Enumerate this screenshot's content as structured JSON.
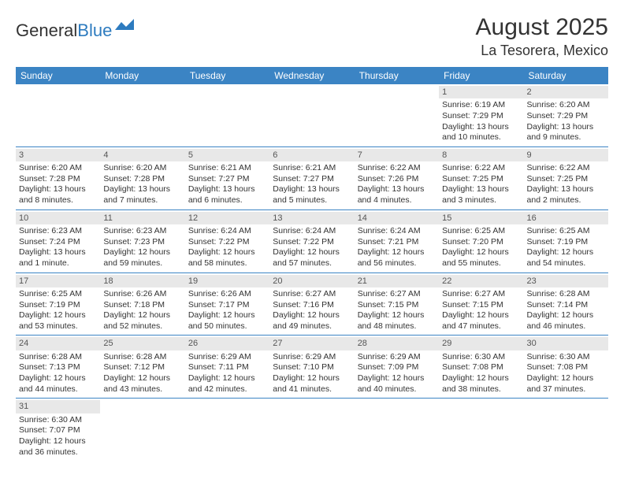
{
  "logo": {
    "part1": "General",
    "part2": "Blue"
  },
  "title": "August 2025",
  "location": "La Tesorera, Mexico",
  "colors": {
    "header_bg": "#3b84c4",
    "header_text": "#ffffff",
    "daynum_bg": "#e8e8e8",
    "text": "#333333",
    "row_border": "#3b84c4"
  },
  "day_names": [
    "Sunday",
    "Monday",
    "Tuesday",
    "Wednesday",
    "Thursday",
    "Friday",
    "Saturday"
  ],
  "weeks": [
    [
      null,
      null,
      null,
      null,
      null,
      {
        "n": "1",
        "sr": "Sunrise: 6:19 AM",
        "ss": "Sunset: 7:29 PM",
        "dl1": "Daylight: 13 hours",
        "dl2": "and 10 minutes."
      },
      {
        "n": "2",
        "sr": "Sunrise: 6:20 AM",
        "ss": "Sunset: 7:29 PM",
        "dl1": "Daylight: 13 hours",
        "dl2": "and 9 minutes."
      }
    ],
    [
      {
        "n": "3",
        "sr": "Sunrise: 6:20 AM",
        "ss": "Sunset: 7:28 PM",
        "dl1": "Daylight: 13 hours",
        "dl2": "and 8 minutes."
      },
      {
        "n": "4",
        "sr": "Sunrise: 6:20 AM",
        "ss": "Sunset: 7:28 PM",
        "dl1": "Daylight: 13 hours",
        "dl2": "and 7 minutes."
      },
      {
        "n": "5",
        "sr": "Sunrise: 6:21 AM",
        "ss": "Sunset: 7:27 PM",
        "dl1": "Daylight: 13 hours",
        "dl2": "and 6 minutes."
      },
      {
        "n": "6",
        "sr": "Sunrise: 6:21 AM",
        "ss": "Sunset: 7:27 PM",
        "dl1": "Daylight: 13 hours",
        "dl2": "and 5 minutes."
      },
      {
        "n": "7",
        "sr": "Sunrise: 6:22 AM",
        "ss": "Sunset: 7:26 PM",
        "dl1": "Daylight: 13 hours",
        "dl2": "and 4 minutes."
      },
      {
        "n": "8",
        "sr": "Sunrise: 6:22 AM",
        "ss": "Sunset: 7:25 PM",
        "dl1": "Daylight: 13 hours",
        "dl2": "and 3 minutes."
      },
      {
        "n": "9",
        "sr": "Sunrise: 6:22 AM",
        "ss": "Sunset: 7:25 PM",
        "dl1": "Daylight: 13 hours",
        "dl2": "and 2 minutes."
      }
    ],
    [
      {
        "n": "10",
        "sr": "Sunrise: 6:23 AM",
        "ss": "Sunset: 7:24 PM",
        "dl1": "Daylight: 13 hours",
        "dl2": "and 1 minute."
      },
      {
        "n": "11",
        "sr": "Sunrise: 6:23 AM",
        "ss": "Sunset: 7:23 PM",
        "dl1": "Daylight: 12 hours",
        "dl2": "and 59 minutes."
      },
      {
        "n": "12",
        "sr": "Sunrise: 6:24 AM",
        "ss": "Sunset: 7:22 PM",
        "dl1": "Daylight: 12 hours",
        "dl2": "and 58 minutes."
      },
      {
        "n": "13",
        "sr": "Sunrise: 6:24 AM",
        "ss": "Sunset: 7:22 PM",
        "dl1": "Daylight: 12 hours",
        "dl2": "and 57 minutes."
      },
      {
        "n": "14",
        "sr": "Sunrise: 6:24 AM",
        "ss": "Sunset: 7:21 PM",
        "dl1": "Daylight: 12 hours",
        "dl2": "and 56 minutes."
      },
      {
        "n": "15",
        "sr": "Sunrise: 6:25 AM",
        "ss": "Sunset: 7:20 PM",
        "dl1": "Daylight: 12 hours",
        "dl2": "and 55 minutes."
      },
      {
        "n": "16",
        "sr": "Sunrise: 6:25 AM",
        "ss": "Sunset: 7:19 PM",
        "dl1": "Daylight: 12 hours",
        "dl2": "and 54 minutes."
      }
    ],
    [
      {
        "n": "17",
        "sr": "Sunrise: 6:25 AM",
        "ss": "Sunset: 7:19 PM",
        "dl1": "Daylight: 12 hours",
        "dl2": "and 53 minutes."
      },
      {
        "n": "18",
        "sr": "Sunrise: 6:26 AM",
        "ss": "Sunset: 7:18 PM",
        "dl1": "Daylight: 12 hours",
        "dl2": "and 52 minutes."
      },
      {
        "n": "19",
        "sr": "Sunrise: 6:26 AM",
        "ss": "Sunset: 7:17 PM",
        "dl1": "Daylight: 12 hours",
        "dl2": "and 50 minutes."
      },
      {
        "n": "20",
        "sr": "Sunrise: 6:27 AM",
        "ss": "Sunset: 7:16 PM",
        "dl1": "Daylight: 12 hours",
        "dl2": "and 49 minutes."
      },
      {
        "n": "21",
        "sr": "Sunrise: 6:27 AM",
        "ss": "Sunset: 7:15 PM",
        "dl1": "Daylight: 12 hours",
        "dl2": "and 48 minutes."
      },
      {
        "n": "22",
        "sr": "Sunrise: 6:27 AM",
        "ss": "Sunset: 7:15 PM",
        "dl1": "Daylight: 12 hours",
        "dl2": "and 47 minutes."
      },
      {
        "n": "23",
        "sr": "Sunrise: 6:28 AM",
        "ss": "Sunset: 7:14 PM",
        "dl1": "Daylight: 12 hours",
        "dl2": "and 46 minutes."
      }
    ],
    [
      {
        "n": "24",
        "sr": "Sunrise: 6:28 AM",
        "ss": "Sunset: 7:13 PM",
        "dl1": "Daylight: 12 hours",
        "dl2": "and 44 minutes."
      },
      {
        "n": "25",
        "sr": "Sunrise: 6:28 AM",
        "ss": "Sunset: 7:12 PM",
        "dl1": "Daylight: 12 hours",
        "dl2": "and 43 minutes."
      },
      {
        "n": "26",
        "sr": "Sunrise: 6:29 AM",
        "ss": "Sunset: 7:11 PM",
        "dl1": "Daylight: 12 hours",
        "dl2": "and 42 minutes."
      },
      {
        "n": "27",
        "sr": "Sunrise: 6:29 AM",
        "ss": "Sunset: 7:10 PM",
        "dl1": "Daylight: 12 hours",
        "dl2": "and 41 minutes."
      },
      {
        "n": "28",
        "sr": "Sunrise: 6:29 AM",
        "ss": "Sunset: 7:09 PM",
        "dl1": "Daylight: 12 hours",
        "dl2": "and 40 minutes."
      },
      {
        "n": "29",
        "sr": "Sunrise: 6:30 AM",
        "ss": "Sunset: 7:08 PM",
        "dl1": "Daylight: 12 hours",
        "dl2": "and 38 minutes."
      },
      {
        "n": "30",
        "sr": "Sunrise: 6:30 AM",
        "ss": "Sunset: 7:08 PM",
        "dl1": "Daylight: 12 hours",
        "dl2": "and 37 minutes."
      }
    ],
    [
      {
        "n": "31",
        "sr": "Sunrise: 6:30 AM",
        "ss": "Sunset: 7:07 PM",
        "dl1": "Daylight: 12 hours",
        "dl2": "and 36 minutes."
      },
      null,
      null,
      null,
      null,
      null,
      null
    ]
  ]
}
